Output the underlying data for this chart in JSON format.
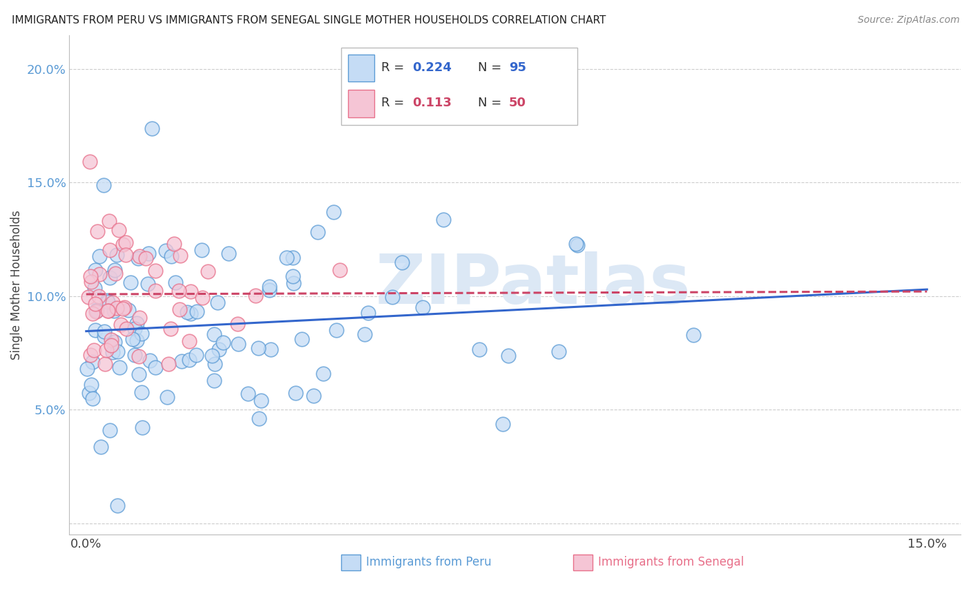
{
  "title": "IMMIGRANTS FROM PERU VS IMMIGRANTS FROM SENEGAL SINGLE MOTHER HOUSEHOLDS CORRELATION CHART",
  "source": "Source: ZipAtlas.com",
  "ylabel": "Single Mother Households",
  "xlabel_peru": "Immigrants from Peru",
  "xlabel_senegal": "Immigrants from Senegal",
  "R_peru": 0.224,
  "N_peru": 95,
  "R_senegal": 0.113,
  "N_senegal": 50,
  "color_peru": "#c5dcf5",
  "color_senegal": "#f5c5d5",
  "edge_color_peru": "#5b9bd5",
  "edge_color_senegal": "#e8708a",
  "line_color_peru": "#3366cc",
  "line_color_senegal": "#cc4466",
  "watermark_color": "#dce8f5",
  "watermark_text": "ZIPatlas",
  "legend_R_color": "#3366cc",
  "legend_N_color": "#cc4466",
  "ytick_color": "#5b9bd5"
}
